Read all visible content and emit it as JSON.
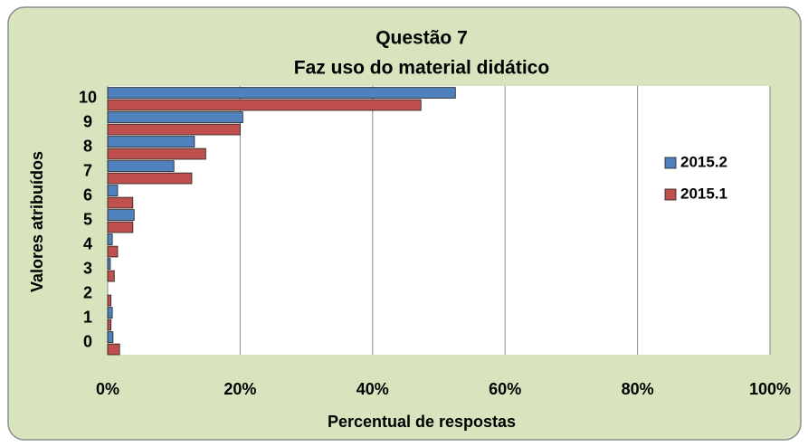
{
  "chart_data": {
    "type": "barh",
    "title": "Questão  7",
    "subtitle": "Faz uso do material didático",
    "xlabel": "Percentual de respostas",
    "ylabel": "Valores atribuídos",
    "categories": [
      "10",
      "9",
      "8",
      "7",
      "6",
      "5",
      "4",
      "3",
      "2",
      "1",
      "0"
    ],
    "series": [
      {
        "name": "2015.2",
        "color": "#4f81bd",
        "values": [
          52.5,
          20.4,
          13.1,
          10,
          1.5,
          4,
          0.7,
          0.4,
          0,
          0.7,
          0.8
        ]
      },
      {
        "name": "2015.1",
        "color": "#c0504d",
        "values": [
          47.3,
          20,
          14.8,
          12.7,
          3.8,
          3.8,
          1.5,
          1,
          0.5,
          0.5,
          1.8
        ]
      }
    ],
    "xlim": [
      0,
      100
    ],
    "xticks": [
      {
        "value": 0,
        "label": "0%"
      },
      {
        "value": 20,
        "label": "20%"
      },
      {
        "value": 40,
        "label": "40%"
      },
      {
        "value": 60,
        "label": "60%"
      },
      {
        "value": 80,
        "label": "80%"
      },
      {
        "value": 100,
        "label": "100%"
      }
    ],
    "grid": true,
    "legend": "right"
  }
}
